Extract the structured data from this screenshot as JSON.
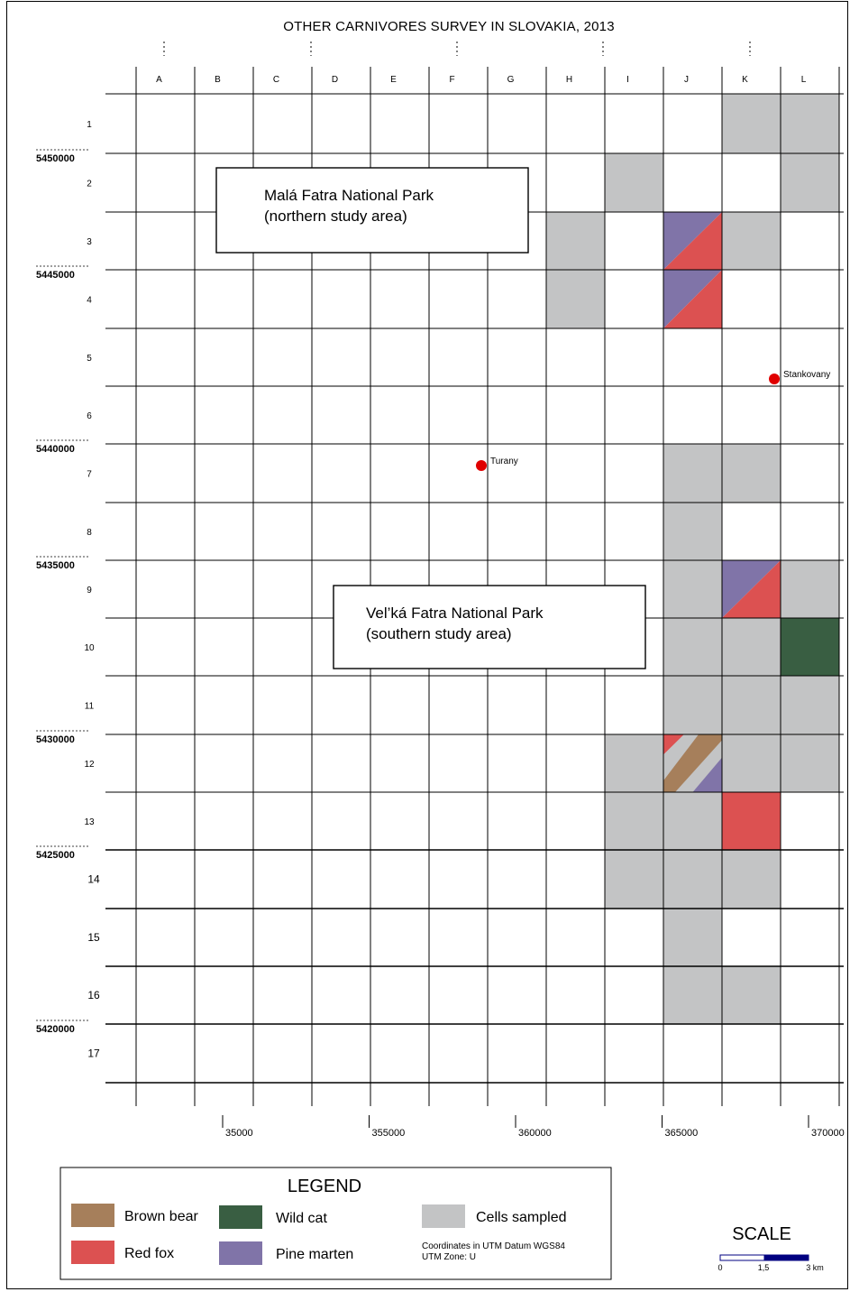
{
  "title": "OTHER CARNIVORES SURVEY IN SLOVAKIA, 2013",
  "columns": [
    "A",
    "B",
    "C",
    "D",
    "E",
    "F",
    "G",
    "H",
    "I",
    "J",
    "K",
    "L"
  ],
  "rows": [
    "1",
    "2",
    "3",
    "4",
    "5",
    "6",
    "7",
    "8",
    "9",
    "10",
    "11",
    "12",
    "13",
    "14",
    "15",
    "16",
    "17"
  ],
  "northings": [
    {
      "label": "5450000",
      "row": 1
    },
    {
      "label": "5445000",
      "row": 3
    },
    {
      "label": "5440000",
      "row": 6
    },
    {
      "label": "5435000",
      "row": 8
    },
    {
      "label": "5430000",
      "row": 11
    },
    {
      "label": "5425000",
      "row": 13
    },
    {
      "label": "5420000",
      "row": 16
    }
  ],
  "eastings": [
    {
      "label": "35000",
      "col": 1
    },
    {
      "label": "355000",
      "col": 3.5
    },
    {
      "label": "360000",
      "col": 6
    },
    {
      "label": "365000",
      "col": 8.5
    },
    {
      "label": "370000",
      "col": 11
    }
  ],
  "areas": {
    "north": {
      "line1": "Malá Fatra National Park",
      "line2": "(northern study area)"
    },
    "south": {
      "line1": "Vel’ká Fatra National Park",
      "line2": "(southern study area)"
    }
  },
  "places": [
    {
      "name": "Turany",
      "col": "G",
      "row": 7
    },
    {
      "name": "Stankovany",
      "col": "K",
      "row": 5
    }
  ],
  "colors": {
    "sampled": "#c3c4c5",
    "brown_bear": "#a67f5b",
    "red_fox": "#dc5151",
    "wild_cat": "#395e42",
    "pine_marten": "#8074a8",
    "place_dot": "#e00000",
    "scale_bar": "#000080"
  },
  "cells": [
    {
      "col": "K",
      "row": 1,
      "fill": "sampled"
    },
    {
      "col": "L",
      "row": 1,
      "fill": "sampled"
    },
    {
      "col": "I",
      "row": 2,
      "fill": "sampled"
    },
    {
      "col": "L",
      "row": 2,
      "fill": "sampled"
    },
    {
      "col": "H",
      "row": 3,
      "fill": "sampled"
    },
    {
      "col": "J",
      "row": 3,
      "fill": "split",
      "species": [
        "pine_marten",
        "red_fox"
      ]
    },
    {
      "col": "K",
      "row": 3,
      "fill": "sampled"
    },
    {
      "col": "H",
      "row": 4,
      "fill": "sampled"
    },
    {
      "col": "J",
      "row": 4,
      "fill": "split",
      "species": [
        "pine_marten",
        "red_fox"
      ]
    },
    {
      "col": "J",
      "row": 7,
      "fill": "sampled"
    },
    {
      "col": "K",
      "row": 7,
      "fill": "sampled"
    },
    {
      "col": "J",
      "row": 8,
      "fill": "sampled"
    },
    {
      "col": "J",
      "row": 9,
      "fill": "sampled"
    },
    {
      "col": "K",
      "row": 9,
      "fill": "split",
      "species": [
        "pine_marten",
        "red_fox"
      ]
    },
    {
      "col": "L",
      "row": 9,
      "fill": "sampled"
    },
    {
      "col": "J",
      "row": 10,
      "fill": "sampled"
    },
    {
      "col": "K",
      "row": 10,
      "fill": "sampled"
    },
    {
      "col": "L",
      "row": 10,
      "fill": "wild_cat"
    },
    {
      "col": "J",
      "row": 11,
      "fill": "sampled"
    },
    {
      "col": "K",
      "row": 11,
      "fill": "sampled"
    },
    {
      "col": "L",
      "row": 11,
      "fill": "sampled"
    },
    {
      "col": "I",
      "row": 12,
      "fill": "sampled"
    },
    {
      "col": "J",
      "row": 12,
      "fill": "triple",
      "species": [
        "red_fox",
        "brown_bear",
        "pine_marten"
      ]
    },
    {
      "col": "K",
      "row": 12,
      "fill": "sampled"
    },
    {
      "col": "L",
      "row": 12,
      "fill": "sampled"
    },
    {
      "col": "I",
      "row": 13,
      "fill": "sampled"
    },
    {
      "col": "J",
      "row": 13,
      "fill": "sampled"
    },
    {
      "col": "K",
      "row": 13,
      "fill": "red_fox"
    },
    {
      "col": "I",
      "row": 14,
      "fill": "sampled"
    },
    {
      "col": "J",
      "row": 14,
      "fill": "sampled"
    },
    {
      "col": "K",
      "row": 14,
      "fill": "sampled"
    },
    {
      "col": "J",
      "row": 15,
      "fill": "sampled"
    },
    {
      "col": "J",
      "row": 16,
      "fill": "sampled"
    },
    {
      "col": "K",
      "row": 16,
      "fill": "sampled"
    }
  ],
  "legend": {
    "title": "LEGEND",
    "items": [
      {
        "key": "brown_bear",
        "label": "Brown bear"
      },
      {
        "key": "red_fox",
        "label": "Red fox"
      },
      {
        "key": "wild_cat",
        "label": "Wild cat"
      },
      {
        "key": "pine_marten",
        "label": "Pine marten"
      },
      {
        "key": "sampled",
        "label": "Cells sampled"
      }
    ],
    "note_line1": "Coordinates in UTM Datum WGS84",
    "note_line2": "UTM Zone: U"
  },
  "scale": {
    "title": "SCALE",
    "ticks": [
      "0",
      "1,5",
      "3 km"
    ]
  }
}
